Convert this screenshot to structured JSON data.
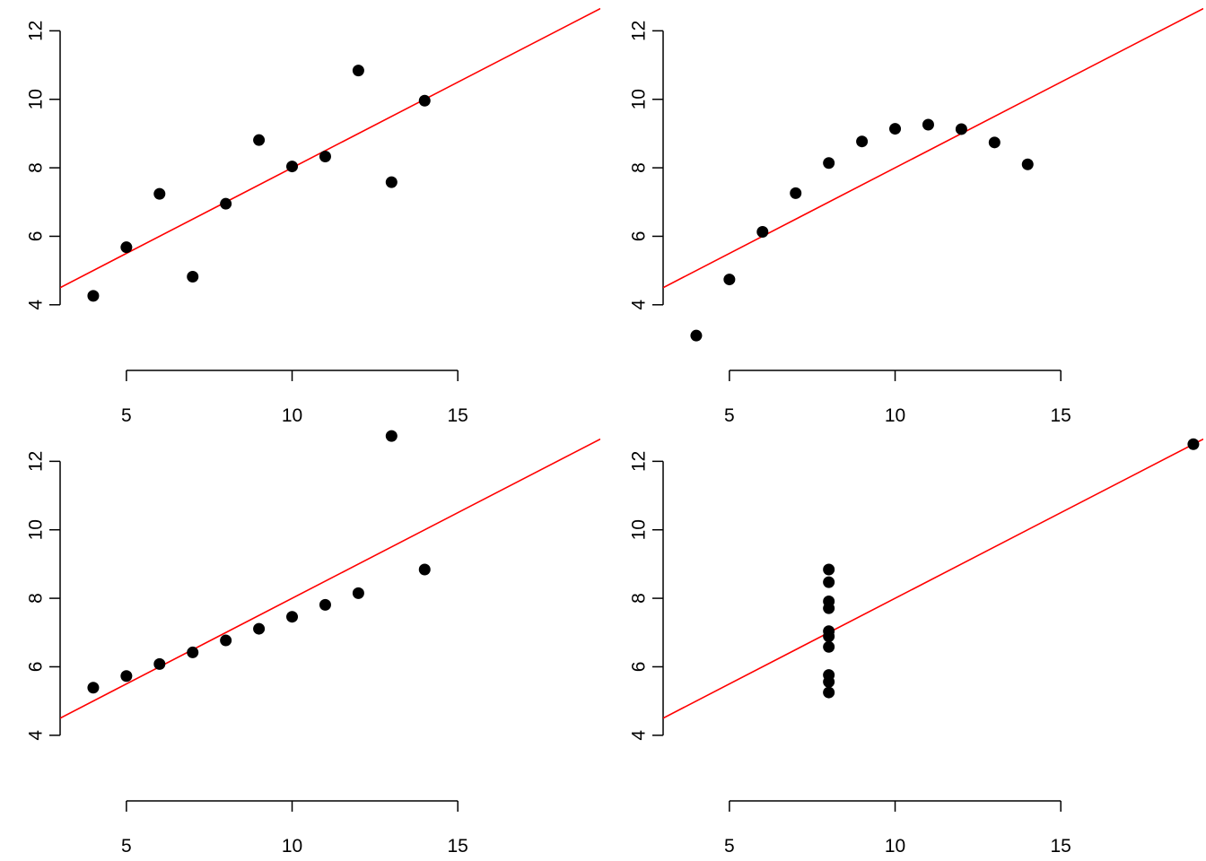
{
  "chart_data": [
    {
      "type": "scatter",
      "title": "",
      "xlabel": "",
      "ylabel": "",
      "xlim": [
        3,
        19.3
      ],
      "ylim": [
        3,
        12.9
      ],
      "xticks": [
        "5",
        "10",
        "15"
      ],
      "yticks": [
        "4",
        "6",
        "8",
        "10",
        "12"
      ],
      "points": [
        [
          10,
          8.04
        ],
        [
          8,
          6.95
        ],
        [
          13,
          7.58
        ],
        [
          9,
          8.81
        ],
        [
          11,
          8.33
        ],
        [
          14,
          9.96
        ],
        [
          6,
          7.24
        ],
        [
          4,
          4.26
        ],
        [
          12,
          10.84
        ],
        [
          7,
          4.82
        ],
        [
          5,
          5.68
        ]
      ],
      "fit_line": {
        "intercept": 3.0,
        "slope": 0.5
      },
      "colors": {
        "points": "#000000",
        "fit_line": "#ff0000"
      }
    },
    {
      "type": "scatter",
      "title": "",
      "xlabel": "",
      "ylabel": "",
      "xlim": [
        3,
        19.3
      ],
      "ylim": [
        3,
        12.9
      ],
      "xticks": [
        "5",
        "10",
        "15"
      ],
      "yticks": [
        "4",
        "6",
        "8",
        "10",
        "12"
      ],
      "points": [
        [
          10,
          9.14
        ],
        [
          8,
          8.14
        ],
        [
          13,
          8.74
        ],
        [
          9,
          8.77
        ],
        [
          11,
          9.26
        ],
        [
          14,
          8.1
        ],
        [
          6,
          6.13
        ],
        [
          4,
          3.1
        ],
        [
          12,
          9.13
        ],
        [
          7,
          7.26
        ],
        [
          5,
          4.74
        ]
      ],
      "fit_line": {
        "intercept": 3.0,
        "slope": 0.5
      },
      "colors": {
        "points": "#000000",
        "fit_line": "#ff0000"
      }
    },
    {
      "type": "scatter",
      "title": "",
      "xlabel": "",
      "ylabel": "",
      "xlim": [
        3,
        19.3
      ],
      "ylim": [
        3,
        12.9
      ],
      "xticks": [
        "5",
        "10",
        "15"
      ],
      "yticks": [
        "4",
        "6",
        "8",
        "10",
        "12"
      ],
      "points": [
        [
          10,
          7.46
        ],
        [
          8,
          6.77
        ],
        [
          13,
          12.74
        ],
        [
          9,
          7.11
        ],
        [
          11,
          7.81
        ],
        [
          14,
          8.84
        ],
        [
          6,
          6.08
        ],
        [
          4,
          5.39
        ],
        [
          12,
          8.15
        ],
        [
          7,
          6.42
        ],
        [
          5,
          5.73
        ]
      ],
      "fit_line": {
        "intercept": 3.0,
        "slope": 0.5
      },
      "colors": {
        "points": "#000000",
        "fit_line": "#ff0000"
      }
    },
    {
      "type": "scatter",
      "title": "",
      "xlabel": "",
      "ylabel": "",
      "xlim": [
        3,
        19.3
      ],
      "ylim": [
        3,
        12.9
      ],
      "xticks": [
        "5",
        "10",
        "15"
      ],
      "yticks": [
        "4",
        "6",
        "8",
        "10",
        "12"
      ],
      "points": [
        [
          8,
          6.58
        ],
        [
          8,
          5.76
        ],
        [
          8,
          7.71
        ],
        [
          8,
          8.84
        ],
        [
          8,
          8.47
        ],
        [
          8,
          7.04
        ],
        [
          8,
          5.25
        ],
        [
          19,
          12.5
        ],
        [
          8,
          5.56
        ],
        [
          8,
          7.91
        ],
        [
          8,
          6.89
        ]
      ],
      "fit_line": {
        "intercept": 3.0,
        "slope": 0.5
      },
      "colors": {
        "points": "#000000",
        "fit_line": "#ff0000"
      }
    }
  ]
}
